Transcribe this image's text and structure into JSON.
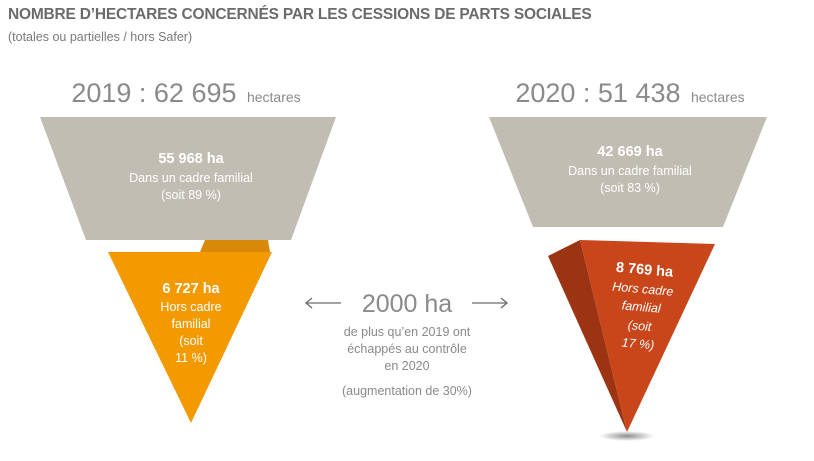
{
  "header": {
    "title": "NOMBRE D’HECTARES CONCERNÉS PAR LES CESSIONS DE PARTS SOCIALES",
    "subtitle": "(totales ou partielles / hors Safer)"
  },
  "colors": {
    "familial": "#c2bdb3",
    "familial_shade": "#aba69b",
    "hors_2019": "#f29a00",
    "hors_2019_shade": "#d8890a",
    "hors_2020": "#c9451a",
    "hors_2020_shade": "#9c3413",
    "text_grey": "#8a8a8a"
  },
  "chart_data": [
    {
      "type": "pie",
      "year_label": "2019 : 62 695",
      "unit": "hectares",
      "total": 62695,
      "segments": [
        {
          "value": 55968,
          "value_label": "55 968 ha",
          "desc_lines": [
            "Dans un cadre familial",
            "(soit 89 %)"
          ],
          "percent": 89
        },
        {
          "value": 6727,
          "value_label": "6 727 ha",
          "desc_lines": [
            "Hors cadre",
            "familial",
            "(soit",
            "11 %)"
          ],
          "percent": 11
        }
      ]
    },
    {
      "type": "pie",
      "year_label": "2020 : 51 438",
      "unit": "hectares",
      "total": 51438,
      "segments": [
        {
          "value": 42669,
          "value_label": "42 669 ha",
          "desc_lines": [
            "Dans un cadre familial",
            "(soit 83 %)"
          ],
          "percent": 83
        },
        {
          "value": 8769,
          "value_label": "8 769 ha",
          "desc_lines": [
            "Hors cadre",
            "familial",
            "(soit",
            "17 %)"
          ],
          "percent": 17
        }
      ]
    }
  ],
  "comparison": {
    "value": "2000 ha",
    "lines": [
      "de plus qu’en 2019 ont",
      "échappés au contrôle",
      "en 2020"
    ],
    "note": "(augmentation de 30%)"
  }
}
